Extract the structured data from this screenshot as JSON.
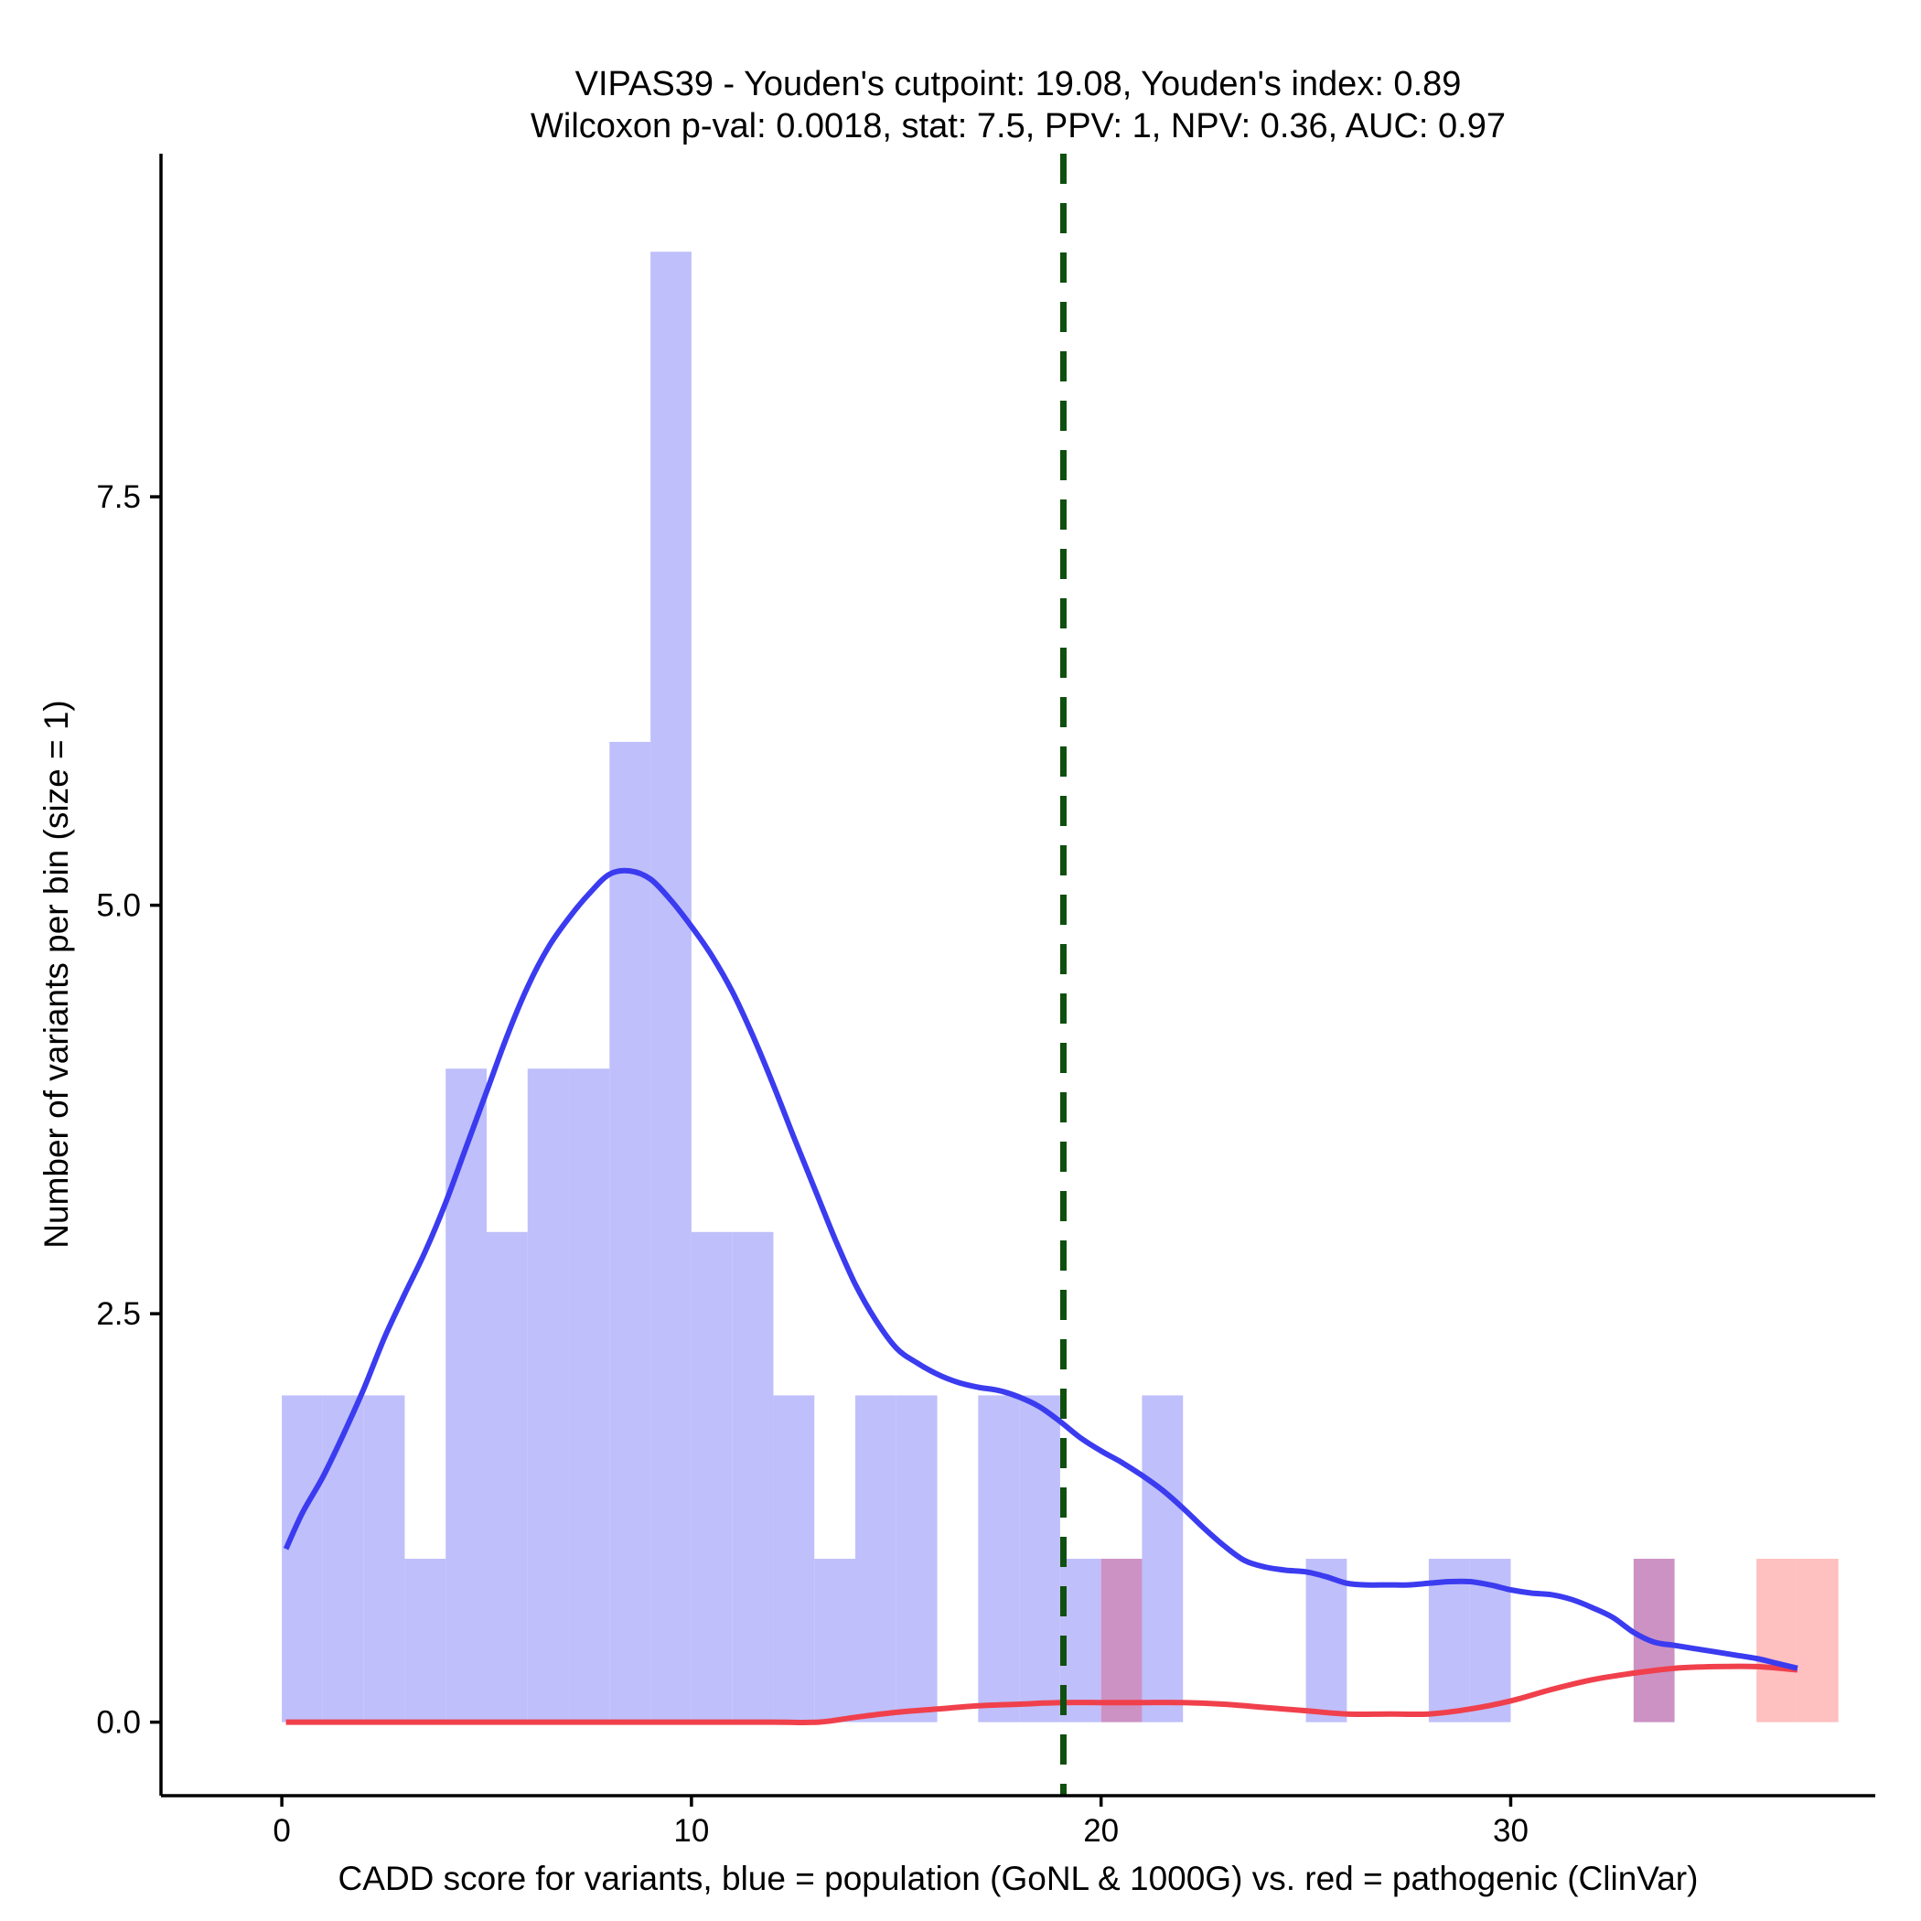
{
  "chart_data": {
    "type": "histogram",
    "title_lines": [
      "VIPAS39 - Youden's cutpoint: 19.08, Youden's index: 0.89",
      "Wilcoxon p-val: 0.0018, stat: 7.5, PPV: 1, NPV: 0.36, AUC: 0.97"
    ],
    "xlabel": "CADD score for variants, blue = population (GoNL & 1000G) vs. red = pathogenic (ClinVar)",
    "ylabel": "Number of variants per bin (size = 1)",
    "xlim": [
      -2.95,
      38.9
    ],
    "ylim": [
      -0.45,
      9.6
    ],
    "x_ticks": [
      0,
      10,
      20,
      30
    ],
    "x_tick_labels": [
      "0",
      "10",
      "20",
      "30"
    ],
    "y_ticks": [
      0,
      2.5,
      5,
      7.5
    ],
    "y_tick_labels": [
      "0.0",
      "2.5",
      "5.0",
      "7.5"
    ],
    "bin_width": 1,
    "cutpoint": 19.08,
    "colors": {
      "population_bar": "#bfbffb",
      "pathogenic_bar": "#ffc0c0",
      "overlap_bar": "#cc92c4",
      "population_line": "#3b3bf0",
      "pathogenic_line": "#f0404c",
      "cutpoint_line": "#0f4f0f",
      "axis": "#000000"
    },
    "series": [
      {
        "name": "population (GoNL & 1000G)",
        "color_key": "population",
        "bins": [
          {
            "start": 0,
            "count": 2
          },
          {
            "start": 1,
            "count": 2
          },
          {
            "start": 2,
            "count": 2
          },
          {
            "start": 3,
            "count": 1
          },
          {
            "start": 4,
            "count": 4
          },
          {
            "start": 5,
            "count": 3
          },
          {
            "start": 6,
            "count": 4
          },
          {
            "start": 7,
            "count": 4
          },
          {
            "start": 8,
            "count": 6
          },
          {
            "start": 9,
            "count": 9
          },
          {
            "start": 10,
            "count": 3
          },
          {
            "start": 11,
            "count": 3
          },
          {
            "start": 12,
            "count": 2
          },
          {
            "start": 13,
            "count": 1
          },
          {
            "start": 14,
            "count": 2
          },
          {
            "start": 15,
            "count": 2
          },
          {
            "start": 17,
            "count": 2
          },
          {
            "start": 18,
            "count": 2
          },
          {
            "start": 19,
            "count": 1
          },
          {
            "start": 20,
            "count": 1
          },
          {
            "start": 21,
            "count": 2
          },
          {
            "start": 25,
            "count": 1
          },
          {
            "start": 28,
            "count": 1
          },
          {
            "start": 29,
            "count": 1
          },
          {
            "start": 33,
            "count": 1
          }
        ],
        "density_curve": [
          [
            0.1,
            1.06
          ],
          [
            0.5,
            1.28
          ],
          [
            1,
            1.5
          ],
          [
            1.5,
            1.76
          ],
          [
            2,
            2.04
          ],
          [
            2.5,
            2.35
          ],
          [
            3,
            2.62
          ],
          [
            3.5,
            2.88
          ],
          [
            4,
            3.18
          ],
          [
            4.5,
            3.52
          ],
          [
            5,
            3.86
          ],
          [
            5.5,
            4.2
          ],
          [
            6,
            4.5
          ],
          [
            6.5,
            4.74
          ],
          [
            7,
            4.92
          ],
          [
            7.5,
            5.07
          ],
          [
            8,
            5.19
          ],
          [
            8.5,
            5.21
          ],
          [
            9,
            5.16
          ],
          [
            9.5,
            5.03
          ],
          [
            10,
            4.87
          ],
          [
            10.5,
            4.69
          ],
          [
            11,
            4.47
          ],
          [
            11.5,
            4.2
          ],
          [
            12,
            3.9
          ],
          [
            12.5,
            3.58
          ],
          [
            13,
            3.27
          ],
          [
            13.5,
            2.96
          ],
          [
            14,
            2.68
          ],
          [
            14.5,
            2.46
          ],
          [
            15,
            2.29
          ],
          [
            15.5,
            2.2
          ],
          [
            16,
            2.13
          ],
          [
            16.5,
            2.08
          ],
          [
            17,
            2.05
          ],
          [
            17.5,
            2.03
          ],
          [
            18,
            1.99
          ],
          [
            18.5,
            1.93
          ],
          [
            19,
            1.84
          ],
          [
            19.5,
            1.74
          ],
          [
            20,
            1.66
          ],
          [
            20.5,
            1.59
          ],
          [
            21,
            1.51
          ],
          [
            21.5,
            1.42
          ],
          [
            22,
            1.31
          ],
          [
            22.5,
            1.19
          ],
          [
            23,
            1.08
          ],
          [
            23.5,
            0.99
          ],
          [
            24,
            0.95
          ],
          [
            24.5,
            0.93
          ],
          [
            25,
            0.92
          ],
          [
            25.5,
            0.89
          ],
          [
            26,
            0.85
          ],
          [
            26.5,
            0.84
          ],
          [
            27,
            0.84
          ],
          [
            27.5,
            0.84
          ],
          [
            28,
            0.85
          ],
          [
            28.5,
            0.86
          ],
          [
            29,
            0.86
          ],
          [
            29.5,
            0.84
          ],
          [
            30,
            0.81
          ],
          [
            30.5,
            0.79
          ],
          [
            31,
            0.78
          ],
          [
            31.5,
            0.75
          ],
          [
            32,
            0.7
          ],
          [
            32.5,
            0.64
          ],
          [
            33,
            0.55
          ],
          [
            33.5,
            0.49
          ],
          [
            34,
            0.47
          ],
          [
            34.5,
            0.45
          ],
          [
            35,
            0.43
          ],
          [
            35.5,
            0.41
          ],
          [
            36,
            0.39
          ],
          [
            36.5,
            0.36
          ],
          [
            37,
            0.33
          ]
        ]
      },
      {
        "name": "pathogenic (ClinVar)",
        "color_key": "pathogenic",
        "bins": [
          {
            "start": 20,
            "count": 1
          },
          {
            "start": 33,
            "count": 1
          },
          {
            "start": 36,
            "count": 1
          },
          {
            "start": 37,
            "count": 1
          }
        ],
        "density_curve": [
          [
            0.1,
            0.0
          ],
          [
            2,
            0.0
          ],
          [
            4,
            0.0
          ],
          [
            6,
            0.0
          ],
          [
            8,
            0.0
          ],
          [
            10,
            0.0
          ],
          [
            12,
            0.0
          ],
          [
            13.1,
            0.0
          ],
          [
            14,
            0.03
          ],
          [
            15,
            0.06
          ],
          [
            16,
            0.08
          ],
          [
            17,
            0.1
          ],
          [
            18,
            0.11
          ],
          [
            19,
            0.12
          ],
          [
            20,
            0.12
          ],
          [
            21,
            0.12
          ],
          [
            22,
            0.12
          ],
          [
            23,
            0.11
          ],
          [
            24,
            0.09
          ],
          [
            25,
            0.07
          ],
          [
            26,
            0.05
          ],
          [
            27,
            0.05
          ],
          [
            28,
            0.05
          ],
          [
            29,
            0.08
          ],
          [
            30,
            0.13
          ],
          [
            31,
            0.2
          ],
          [
            32,
            0.26
          ],
          [
            33,
            0.3
          ],
          [
            34,
            0.33
          ],
          [
            35,
            0.34
          ],
          [
            36,
            0.34
          ],
          [
            37,
            0.32
          ]
        ]
      }
    ]
  }
}
